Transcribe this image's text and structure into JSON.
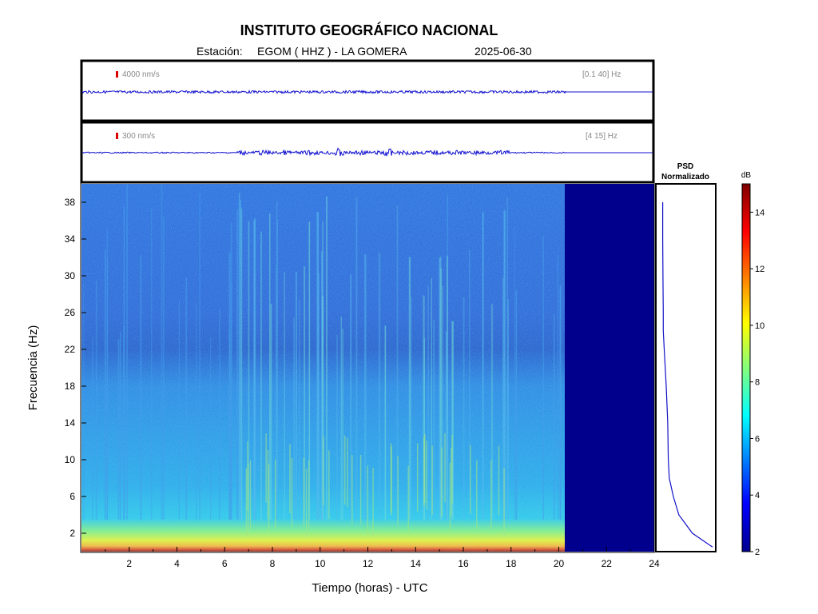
{
  "header": {
    "title": "INSTITUTO GEOGRÁFICO NACIONAL",
    "station_label": "Estación:",
    "station": "EGOM ( HHZ ) - LA GOMERA",
    "date": "2025-06-30"
  },
  "traces": [
    {
      "scale": "4000 nm/s",
      "band": "[0.1 40]  Hz"
    },
    {
      "scale": "300 nm/s",
      "band": "[4 15]  Hz"
    }
  ],
  "psd_panel": {
    "title_line1": "PSD",
    "title_line2": "Normalizado"
  },
  "colorbar": {
    "unit": "dB",
    "ticks": [
      "2",
      "4",
      "6",
      "8",
      "10",
      "12",
      "14"
    ],
    "range": [
      2,
      15
    ]
  },
  "chart_data": {
    "type": "heatmap",
    "title": "INSTITUTO GEOGRÁFICO NACIONAL",
    "xlabel": "Tiempo (horas) - UTC",
    "ylabel": "Frecuencia  (Hz)",
    "xlim": [
      0,
      24
    ],
    "ylim": [
      0,
      40
    ],
    "x_ticks": [
      "2",
      "4",
      "6",
      "8",
      "10",
      "12",
      "14",
      "16",
      "18",
      "20",
      "22",
      "24"
    ],
    "y_ticks": [
      "2",
      "6",
      "10",
      "14",
      "18",
      "22",
      "26",
      "30",
      "34",
      "38"
    ],
    "data_end_hour": 20.3,
    "psd_profile": {
      "freq": [
        0.5,
        2,
        4,
        6,
        8,
        10,
        14,
        18,
        22,
        24,
        26,
        30,
        34,
        38
      ],
      "value": [
        1.0,
        0.6,
        0.33,
        0.22,
        0.14,
        0.12,
        0.11,
        0.08,
        0.04,
        0.02,
        0.02,
        0.015,
        0.01,
        0.01
      ]
    }
  }
}
